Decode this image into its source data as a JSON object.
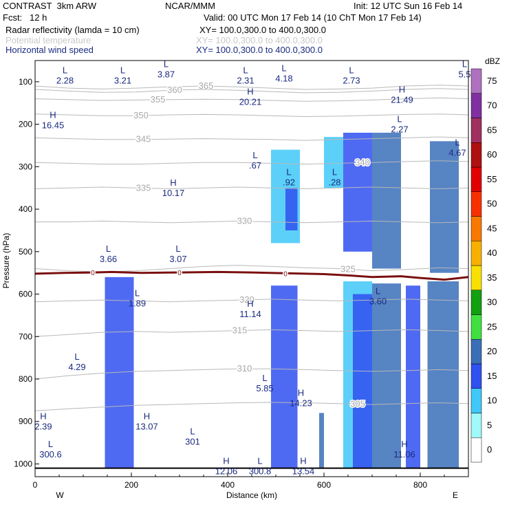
{
  "header": {
    "model": "CONTRAST  3km ARW",
    "org": "NCAR/MMM",
    "init": "Init: 12 UTC Sun 16 Feb 14",
    "fcst": "Fcst:   12 h",
    "valid": "Valid: 00 UTC Mon 17 Feb 14 (10 ChT Mon 17 Feb 14)",
    "fields": [
      {
        "label": "Radar reflectivity (lamda = 10 cm)",
        "xy": "XY= 100.0,300.0 to 400.0,300.0",
        "color": "#000000"
      },
      {
        "label": "Potential temperature",
        "xy": "XY= 100.0,300.0 to 400.0,300.0",
        "color": "#c8c8c8"
      },
      {
        "label": "Horizontal wind speed",
        "xy": "XY= 100.0,300.0 to 400.0,300.0",
        "color": "#1a2a80"
      }
    ]
  },
  "chart_data": {
    "type": "heatmap",
    "title": "Radar reflectivity cross-section",
    "xlabel": "Distance (km)",
    "ylabel": "Pressure (hPa)",
    "xlim": [
      0,
      900
    ],
    "ylim": [
      1030,
      50
    ],
    "xticks": [
      0,
      200,
      400,
      600,
      800
    ],
    "xtick_labels": [
      "0",
      "200",
      "400",
      "600",
      "800"
    ],
    "yticks": [
      100,
      200,
      300,
      400,
      500,
      600,
      700,
      800,
      900,
      1000
    ],
    "ytick_labels": [
      "100",
      "200",
      "300",
      "400",
      "500",
      "600",
      "700",
      "800",
      "900",
      "1000"
    ],
    "direction_labels": {
      "west": "W",
      "east": "E"
    },
    "colorbar": {
      "unit": "dBZ",
      "levels": [
        0,
        5,
        10,
        15,
        20,
        25,
        30,
        35,
        40,
        45,
        50,
        55,
        60,
        65,
        70,
        75
      ],
      "level_labels": [
        "0",
        "5",
        "10",
        "15",
        "20",
        "25",
        "30",
        "35",
        "40",
        "45",
        "50",
        "55",
        "60",
        "65",
        "70",
        "75"
      ],
      "colors": [
        "#ffffff",
        "#a0f8f8",
        "#40c8f8",
        "#3050f0",
        "#3a6fb8",
        "#40e040",
        "#10a010",
        "#f8e000",
        "#f8b000",
        "#f87800",
        "#f83000",
        "#e00000",
        "#b01010",
        "#a03060",
        "#8030a0",
        "#b070c0"
      ]
    },
    "theta_contours": [
      {
        "value": 365,
        "label": "365",
        "label_x": 355,
        "p": [
          110,
          115,
          117,
          115,
          112,
          110,
          112,
          115,
          118,
          117,
          115,
          110,
          108,
          110
        ]
      },
      {
        "value": 360,
        "label": "360",
        "label_x": 290,
        "p": [
          118,
          122,
          125,
          124,
          120,
          118,
          120,
          123,
          126,
          125,
          122,
          118,
          116,
          118
        ]
      },
      {
        "value": 355,
        "label": "355",
        "label_x": 255,
        "p": [
          140,
          142,
          144,
          143,
          142,
          141,
          142,
          144,
          146,
          145,
          143,
          140,
          138,
          140
        ]
      },
      {
        "value": 350,
        "label": "350",
        "label_x": 220,
        "p": [
          176,
          178,
          180,
          180,
          178,
          177,
          178,
          180,
          182,
          181,
          179,
          177,
          176,
          178
        ]
      },
      {
        "value": 345,
        "label": "345",
        "label_x": 225,
        "p": [
          232,
          234,
          236,
          236,
          235,
          234,
          235,
          236,
          238,
          236,
          234,
          232,
          230,
          232
        ]
      },
      {
        "value": 340,
        "label": "340",
        "label_x": 680,
        "p": [
          290,
          292,
          294,
          294,
          292,
          290,
          290,
          292,
          294,
          292,
          290,
          288,
          286,
          288
        ]
      },
      {
        "value": 335,
        "label": "335",
        "label_x": 225,
        "p": [
          352,
          350,
          348,
          350,
          352,
          350,
          348,
          350,
          352,
          350,
          348,
          350,
          352,
          350
        ]
      },
      {
        "value": 330,
        "label": "330",
        "label_x": 435,
        "p": [
          430,
          430,
          428,
          430,
          432,
          430,
          428,
          430,
          432,
          430,
          428,
          430,
          432,
          430
        ]
      },
      {
        "value": 325,
        "label": "325",
        "label_x": 650,
        "p": [
          540,
          545,
          548,
          545,
          540,
          535,
          532,
          535,
          538,
          540,
          545,
          542,
          538,
          540
        ]
      },
      {
        "value": 320,
        "label": "320",
        "label_x": 440,
        "p": [
          618,
          616,
          614,
          616,
          618,
          616,
          614,
          612,
          614,
          616,
          614,
          612,
          614,
          616
        ]
      },
      {
        "value": 315,
        "label": "315",
        "label_x": 425,
        "p": [
          700,
          695,
          690,
          688,
          690,
          688,
          686,
          684,
          686,
          688,
          686,
          684,
          686,
          688
        ]
      },
      {
        "value": 310,
        "label": "310",
        "label_x": 435,
        "p": [
          800,
          792,
          786,
          782,
          780,
          778,
          776,
          776,
          778,
          780,
          782,
          780,
          778,
          780
        ]
      },
      {
        "value": 305,
        "label": "305",
        "label_x": 670,
        "p": [
          875,
          870,
          866,
          862,
          860,
          858,
          856,
          855,
          856,
          858,
          860,
          858,
          856,
          858
        ]
      }
    ],
    "theta_contours_x": [
      0,
      70,
      140,
      210,
      280,
      350,
      420,
      490,
      560,
      630,
      700,
      770,
      840,
      900
    ],
    "freezing_level": {
      "label": "0",
      "x": [
        0,
        60,
        120,
        160,
        220,
        300,
        380,
        450,
        520,
        600,
        650,
        700,
        760,
        800,
        850,
        900
      ],
      "p": [
        552,
        550,
        549,
        548,
        550,
        549,
        548,
        549,
        551,
        553,
        556,
        560,
        558,
        562,
        566,
        560
      ]
    },
    "reflectivity_cells": [
      {
        "x0": 640,
        "x1": 700,
        "p0": 570,
        "p1": 1010,
        "dbz": 10
      },
      {
        "x0": 660,
        "x1": 700,
        "p0": 600,
        "p1": 1010,
        "dbz": 15
      },
      {
        "x0": 700,
        "x1": 760,
        "p0": 575,
        "p1": 1010,
        "dbz": 20
      },
      {
        "x0": 770,
        "x1": 800,
        "p0": 580,
        "p1": 1010,
        "dbz": 15
      },
      {
        "x0": 815,
        "x1": 880,
        "p0": 570,
        "p1": 1010,
        "dbz": 20
      },
      {
        "x0": 490,
        "x1": 545,
        "p0": 580,
        "p1": 1010,
        "dbz": 15
      },
      {
        "x0": 145,
        "x1": 205,
        "p0": 560,
        "p1": 1010,
        "dbz": 15
      },
      {
        "x0": 590,
        "x1": 600,
        "p0": 880,
        "p1": 1010,
        "dbz": 20
      },
      {
        "x0": 600,
        "x1": 640,
        "p0": 230,
        "p1": 350,
        "dbz": 10
      },
      {
        "x0": 640,
        "x1": 700,
        "p0": 220,
        "p1": 500,
        "dbz": 15
      },
      {
        "x0": 700,
        "x1": 760,
        "p0": 220,
        "p1": 540,
        "dbz": 20
      },
      {
        "x0": 820,
        "x1": 880,
        "p0": 240,
        "p1": 550,
        "dbz": 20
      },
      {
        "x0": 490,
        "x1": 550,
        "p0": 260,
        "p1": 480,
        "dbz": 10
      },
      {
        "x0": 520,
        "x1": 545,
        "p0": 350,
        "p1": 450,
        "dbz": 15
      }
    ],
    "annotations": [
      {
        "kind": "L",
        "x": 45,
        "p": 80,
        "value": "2.28"
      },
      {
        "kind": "L",
        "x": 165,
        "p": 80,
        "value": "3.21"
      },
      {
        "kind": "L",
        "x": 255,
        "p": 65,
        "value": "3.87"
      },
      {
        "kind": "L",
        "x": 420,
        "p": 80,
        "value": "2.31"
      },
      {
        "kind": "L",
        "x": 500,
        "p": 75,
        "value": "4.18"
      },
      {
        "kind": "L",
        "x": 640,
        "p": 80,
        "value": "2.73"
      },
      {
        "kind": "L",
        "x": 875,
        "p": 65,
        "value": "5.5"
      },
      {
        "kind": "H",
        "x": 430,
        "p": 130,
        "value": "20.21"
      },
      {
        "kind": "H",
        "x": 745,
        "p": 125,
        "value": "21.49"
      },
      {
        "kind": "H",
        "x": 20,
        "p": 185,
        "value": "16.45"
      },
      {
        "kind": "L",
        "x": 740,
        "p": 195,
        "value": "2.27"
      },
      {
        "kind": "L",
        "x": 860,
        "p": 250,
        "value": "4.67"
      },
      {
        "kind": "L",
        "x": 440,
        "p": 280,
        "value": ".67"
      },
      {
        "kind": "L",
        "x": 510,
        "p": 320,
        "value": ".92"
      },
      {
        "kind": "L",
        "x": 605,
        "p": 320,
        "value": ".28"
      },
      {
        "kind": "H",
        "x": 270,
        "p": 345,
        "value": "10.17"
      },
      {
        "kind": "L",
        "x": 135,
        "p": 500,
        "value": "3.66"
      },
      {
        "kind": "L",
        "x": 280,
        "p": 500,
        "value": "3.07"
      },
      {
        "kind": "L",
        "x": 195,
        "p": 605,
        "value": "1.89"
      },
      {
        "kind": "L",
        "x": 695,
        "p": 600,
        "value": "3.60"
      },
      {
        "kind": "H",
        "x": 430,
        "p": 630,
        "value": "11.14"
      },
      {
        "kind": "L",
        "x": 70,
        "p": 755,
        "value": "4.29"
      },
      {
        "kind": "L",
        "x": 460,
        "p": 805,
        "value": "5.85"
      },
      {
        "kind": "H",
        "x": 535,
        "p": 840,
        "value": "14.23"
      },
      {
        "kind": "H",
        "x": 0,
        "p": 895,
        "value": "2.39"
      },
      {
        "kind": "H",
        "x": 215,
        "p": 895,
        "value": "13.07"
      },
      {
        "kind": "L",
        "x": 310,
        "p": 930,
        "value": "301"
      },
      {
        "kind": "L",
        "x": 15,
        "p": 960,
        "value": "300.6"
      },
      {
        "kind": "H",
        "x": 750,
        "p": 960,
        "value": "11.06"
      },
      {
        "kind": "H",
        "x": 380,
        "p": 1000,
        "value": "12.06"
      },
      {
        "kind": "L",
        "x": 450,
        "p": 1000,
        "value": "300.8"
      },
      {
        "kind": "H",
        "x": 540,
        "p": 1000,
        "value": "13.54"
      }
    ]
  }
}
